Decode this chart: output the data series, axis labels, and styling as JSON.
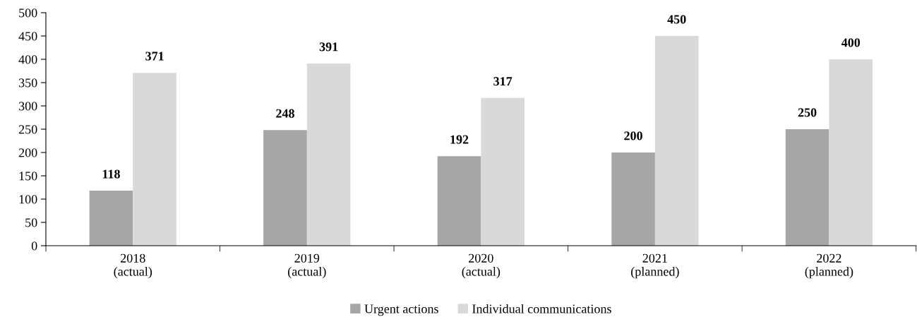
{
  "chart_data": {
    "type": "bar",
    "categories": [
      "2018\n(actual)",
      "2019\n(actual)",
      "2020\n(actual)",
      "2021\n(planned)",
      "2022\n(planned)"
    ],
    "series": [
      {
        "name": "Urgent actions",
        "color": "#a6a6a6",
        "values": [
          118,
          248,
          192,
          200,
          250
        ]
      },
      {
        "name": "Individual communications",
        "color": "#d9d9d9",
        "values": [
          371,
          391,
          317,
          450,
          400
        ]
      }
    ],
    "ylim": [
      0,
      500
    ],
    "yticks": [
      0,
      50,
      100,
      150,
      200,
      250,
      300,
      350,
      400,
      450,
      500
    ],
    "grid": false,
    "legend": "bottom",
    "data_labels": true
  }
}
